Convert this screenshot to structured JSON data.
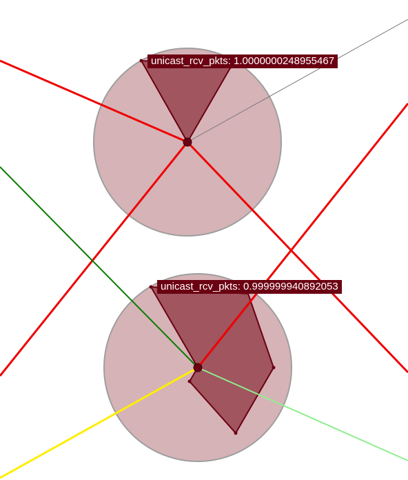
{
  "colors": {
    "background": "#ffffff",
    "node_fill": "#b5747c",
    "node_stroke": "#9e9e9e",
    "wedge_fill": "#8e3642",
    "wedge_stroke": "#6b0012",
    "center": "#6b0012",
    "edge_red": "#ee0000",
    "edge_green": "#0a7a00",
    "edge_yellow": "#ffee00",
    "edge_lightgreen": "#90ee90",
    "edge_gray": "#777777"
  },
  "nodes": [
    {
      "id": "node-1",
      "tooltip": "unicast_rcv_pkts: 1.0000000248955467"
    },
    {
      "id": "node-2",
      "tooltip": "unicast_rcv_pkts: 0.999999940892053"
    }
  ]
}
